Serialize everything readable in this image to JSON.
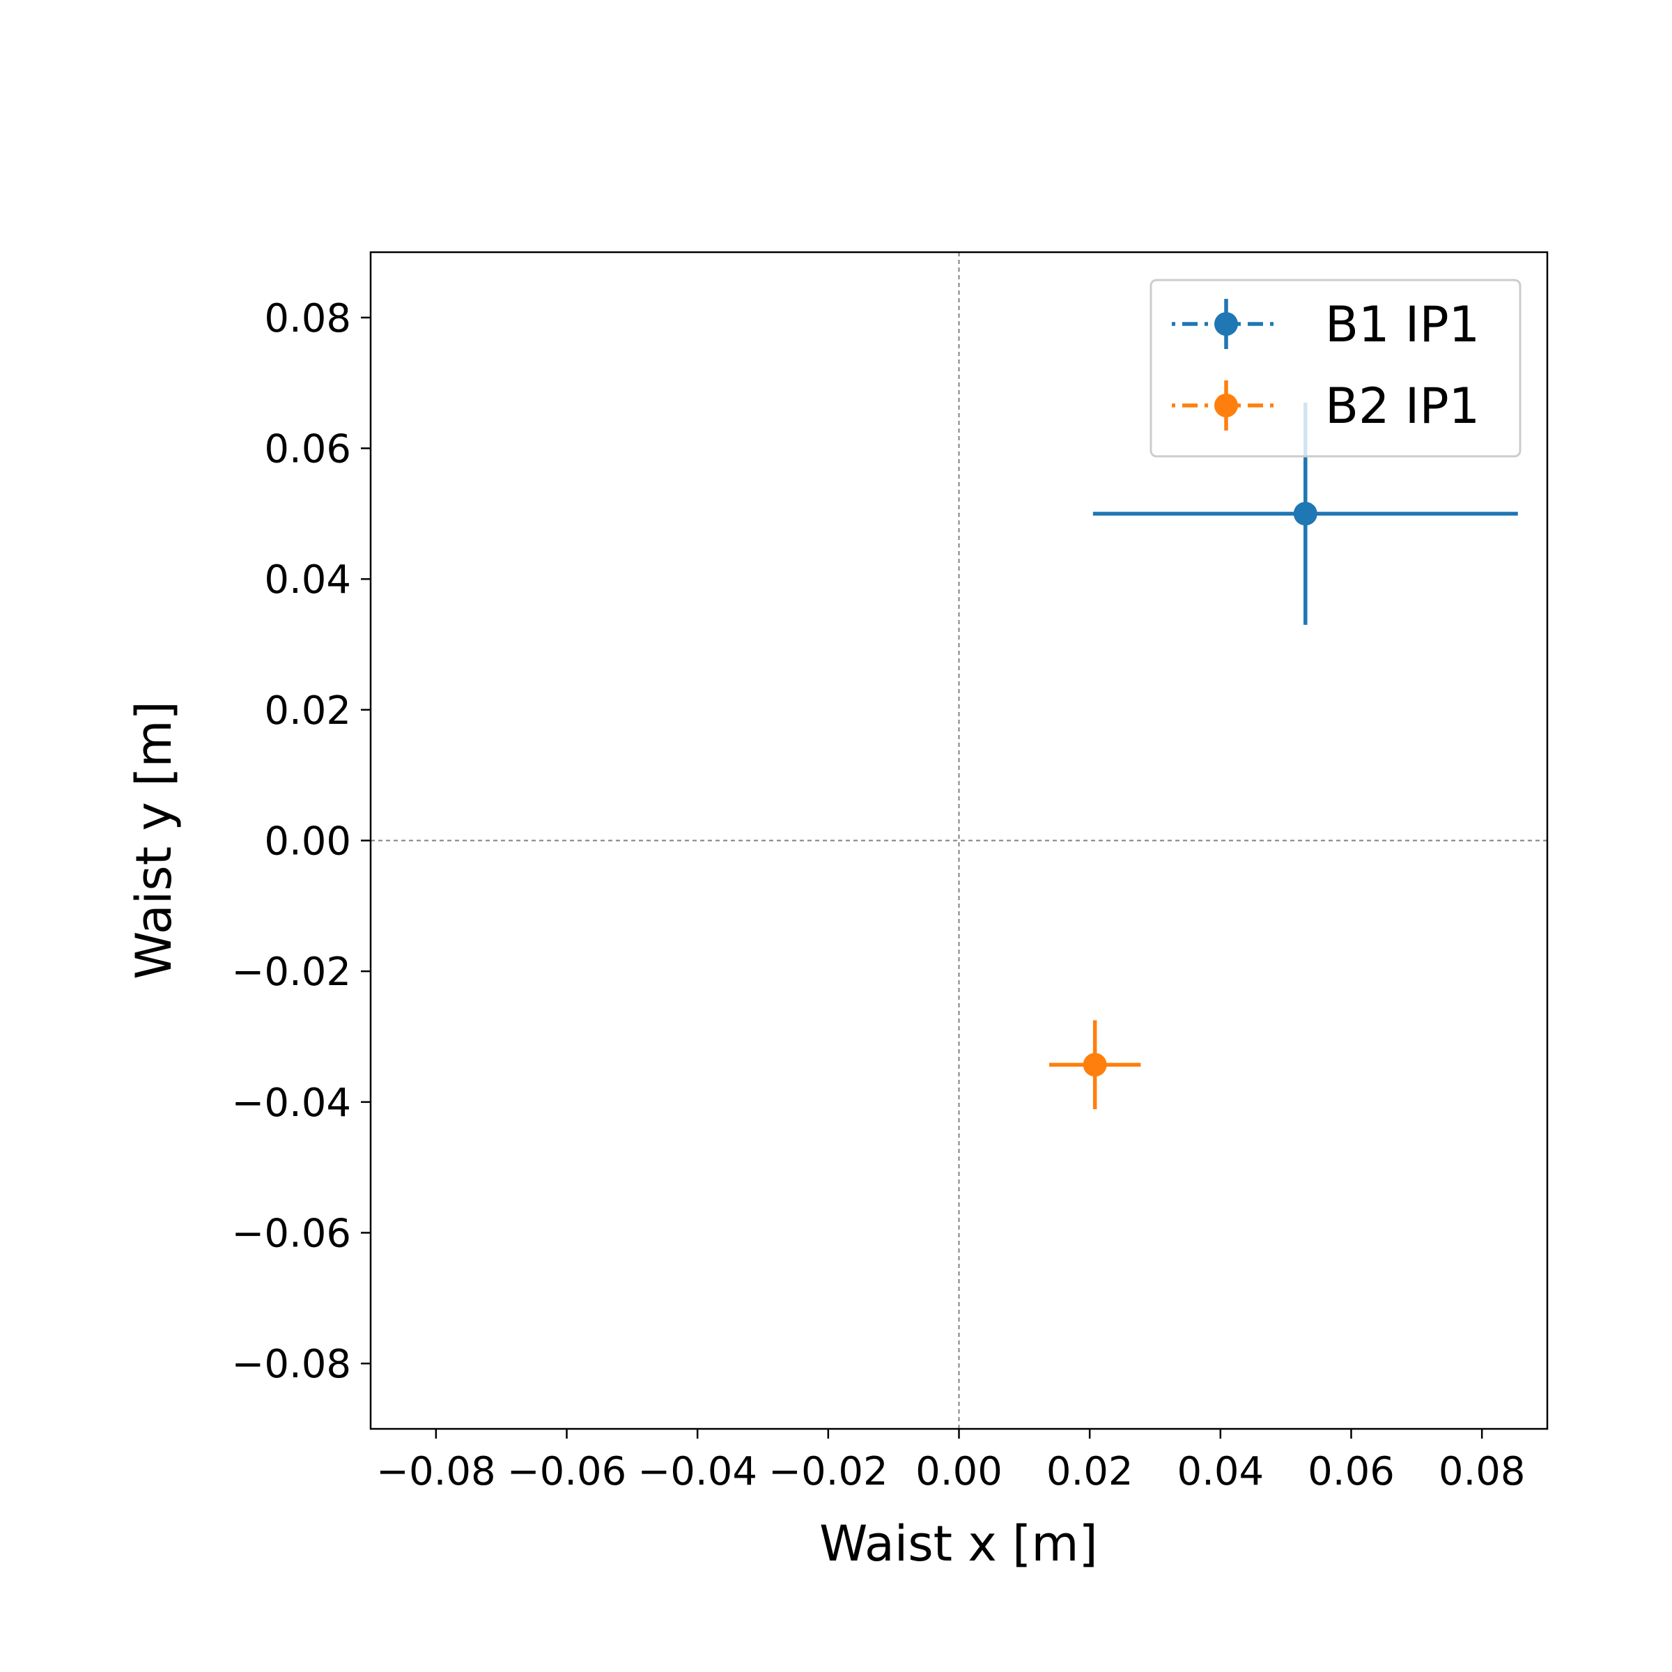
{
  "chart_data": {
    "type": "scatter",
    "title": "",
    "xlabel": "Waist x [m]",
    "ylabel": "Waist y [m]",
    "xlim": [
      -0.09,
      0.09
    ],
    "ylim": [
      -0.09,
      0.09
    ],
    "xticks": [
      -0.08,
      -0.06,
      -0.04,
      -0.02,
      0.0,
      0.02,
      0.04,
      0.06,
      0.08
    ],
    "yticks": [
      -0.08,
      -0.06,
      -0.04,
      -0.02,
      0.0,
      0.02,
      0.04,
      0.06,
      0.08
    ],
    "xtick_labels": [
      "−0.08",
      "−0.06",
      "−0.04",
      "−0.02",
      "0.00",
      "0.02",
      "0.04",
      "0.06",
      "0.08"
    ],
    "ytick_labels": [
      "−0.08",
      "−0.06",
      "−0.04",
      "−0.02",
      "0.00",
      "0.02",
      "0.04",
      "0.06",
      "0.08"
    ],
    "reference_lines": {
      "x": 0,
      "y": 0,
      "style": "dashed",
      "color": "#808080"
    },
    "grid": false,
    "legend_position": "top-right",
    "series": [
      {
        "name": "B1 IP1",
        "color": "#1f77b4",
        "points": [
          {
            "x": 0.053,
            "y": 0.05,
            "xerr_low": 0.0325,
            "xerr_high": 0.0325,
            "yerr_low": 0.017,
            "yerr_high": 0.017
          }
        ]
      },
      {
        "name": "B2 IP1",
        "color": "#ff7f0e",
        "points": [
          {
            "x": 0.0208,
            "y": -0.0343,
            "xerr_low": 0.007,
            "xerr_high": 0.007,
            "yerr_low": 0.0068,
            "yerr_high": 0.0068
          }
        ]
      }
    ]
  }
}
